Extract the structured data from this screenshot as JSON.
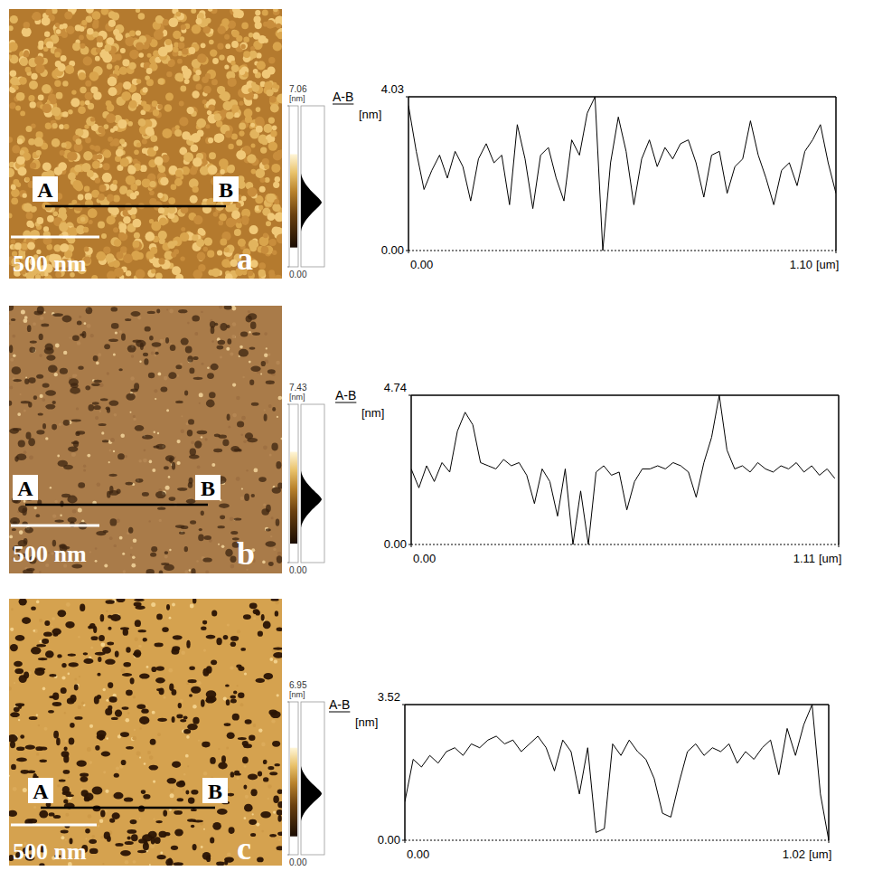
{
  "chart_data": [
    {
      "type": "line",
      "title": "A-B",
      "y_label": "[nm]",
      "x_label": "[um]",
      "color": "#000000",
      "xlim": [
        0,
        1.1
      ],
      "ylim": [
        0,
        4.03
      ],
      "xticks": [
        {
          "value": 0,
          "label": "0.00"
        },
        {
          "value": 1.1,
          "label": "1.10"
        }
      ],
      "yticks": [
        {
          "value": 0,
          "label": "0.00"
        },
        4.03
      ],
      "x": [
        0,
        0.02,
        0.04,
        0.06,
        0.08,
        0.1,
        0.12,
        0.14,
        0.16,
        0.18,
        0.2,
        0.22,
        0.24,
        0.26,
        0.28,
        0.3,
        0.32,
        0.34,
        0.36,
        0.38,
        0.4,
        0.42,
        0.44,
        0.46,
        0.48,
        0.5,
        0.52,
        0.54,
        0.56,
        0.58,
        0.6,
        0.62,
        0.64,
        0.66,
        0.68,
        0.7,
        0.72,
        0.74,
        0.76,
        0.78,
        0.8,
        0.82,
        0.84,
        0.86,
        0.88,
        0.9,
        0.92,
        0.94,
        0.96,
        0.98,
        1.0,
        1.02,
        1.04,
        1.06,
        1.08,
        1.1
      ],
      "values": [
        3.8,
        2.6,
        1.6,
        2.1,
        2.5,
        1.9,
        2.6,
        2.2,
        1.3,
        2.4,
        2.8,
        2.3,
        2.5,
        1.2,
        3.3,
        2.4,
        1.1,
        2.5,
        2.7,
        1.9,
        1.3,
        2.9,
        2.5,
        3.6,
        4.03,
        0.0,
        2.3,
        3.5,
        2.6,
        1.2,
        2.4,
        2.9,
        2.2,
        2.7,
        2.4,
        2.8,
        2.9,
        2.3,
        1.4,
        2.5,
        2.6,
        1.5,
        2.2,
        2.4,
        3.4,
        2.5,
        1.9,
        1.2,
        2.1,
        2.3,
        1.7,
        2.6,
        2.9,
        3.3,
        2.3,
        1.5
      ],
      "image": {
        "label": "a",
        "scale_bar": "500 nm",
        "line_labels": [
          "A",
          "B"
        ],
        "colorbar_unit": "[nm]",
        "colorbar_range": [
          0,
          7.06
        ],
        "colorbar_ticks": [
          {
            "value": 0,
            "label": "0.00"
          },
          7.06
        ]
      }
    },
    {
      "type": "line",
      "title": "A-B",
      "y_label": "[nm]",
      "x_label": "[um]",
      "color": "#000000",
      "xlim": [
        0,
        1.11
      ],
      "ylim": [
        0,
        4.74
      ],
      "xticks": [
        {
          "value": 0,
          "label": "0.00"
        },
        1.11
      ],
      "yticks": [
        {
          "value": 0,
          "label": "0.00"
        },
        4.74
      ],
      "x": [
        0,
        0.02,
        0.04,
        0.06,
        0.08,
        0.1,
        0.12,
        0.14,
        0.16,
        0.18,
        0.2,
        0.22,
        0.24,
        0.26,
        0.28,
        0.3,
        0.32,
        0.34,
        0.36,
        0.38,
        0.4,
        0.42,
        0.44,
        0.46,
        0.48,
        0.5,
        0.52,
        0.54,
        0.56,
        0.58,
        0.6,
        0.62,
        0.64,
        0.66,
        0.68,
        0.7,
        0.72,
        0.74,
        0.76,
        0.78,
        0.8,
        0.82,
        0.84,
        0.86,
        0.88,
        0.9,
        0.92,
        0.94,
        0.96,
        0.98,
        1.0,
        1.02,
        1.04,
        1.06,
        1.08,
        1.1
      ],
      "values": [
        2.4,
        1.8,
        2.5,
        2.0,
        2.6,
        2.3,
        3.6,
        4.2,
        3.8,
        2.6,
        2.5,
        2.4,
        2.7,
        2.5,
        2.6,
        2.2,
        1.3,
        2.4,
        2.0,
        0.9,
        2.4,
        0.0,
        1.7,
        0.0,
        2.3,
        2.5,
        2.2,
        2.3,
        1.1,
        2.0,
        2.4,
        2.4,
        2.5,
        2.4,
        2.6,
        2.5,
        2.3,
        1.5,
        2.6,
        3.4,
        4.74,
        3.0,
        2.4,
        2.5,
        2.3,
        2.6,
        2.4,
        2.3,
        2.5,
        2.4,
        2.6,
        2.3,
        2.5,
        2.2,
        2.4,
        2.1
      ],
      "image": {
        "label": "b",
        "scale_bar": "500 nm",
        "line_labels": [
          "A",
          "B"
        ],
        "colorbar_unit": "[nm]",
        "colorbar_range": [
          0,
          7.43
        ],
        "colorbar_ticks": [
          {
            "value": 0,
            "label": "0.00"
          },
          7.43
        ]
      }
    },
    {
      "type": "line",
      "title": "A-B",
      "y_label": "[nm]",
      "x_label": "[um]",
      "color": "#000000",
      "xlim": [
        0,
        1.02
      ],
      "ylim": [
        0,
        3.52
      ],
      "xticks": [
        {
          "value": 0,
          "label": "0.00"
        },
        1.02
      ],
      "yticks": [
        {
          "value": 0,
          "label": "0.00"
        },
        3.52
      ],
      "x": [
        0,
        0.02,
        0.04,
        0.06,
        0.08,
        0.1,
        0.12,
        0.14,
        0.16,
        0.18,
        0.2,
        0.22,
        0.24,
        0.26,
        0.28,
        0.3,
        0.32,
        0.34,
        0.36,
        0.38,
        0.4,
        0.42,
        0.44,
        0.46,
        0.48,
        0.5,
        0.52,
        0.54,
        0.56,
        0.58,
        0.6,
        0.62,
        0.64,
        0.66,
        0.68,
        0.7,
        0.72,
        0.74,
        0.76,
        0.78,
        0.8,
        0.82,
        0.84,
        0.86,
        0.88,
        0.9,
        0.92,
        0.94,
        0.96,
        0.98,
        1.0,
        1.02
      ],
      "values": [
        1.0,
        2.1,
        1.9,
        2.2,
        2.0,
        2.3,
        2.4,
        2.2,
        2.5,
        2.4,
        2.6,
        2.7,
        2.5,
        2.6,
        2.3,
        2.5,
        2.7,
        2.4,
        1.8,
        2.6,
        2.3,
        1.2,
        2.4,
        0.2,
        0.3,
        2.5,
        2.2,
        2.6,
        2.3,
        2.1,
        1.6,
        0.7,
        0.6,
        1.5,
        2.3,
        2.5,
        2.2,
        2.4,
        2.3,
        2.5,
        2.0,
        2.3,
        2.1,
        2.4,
        2.6,
        1.7,
        2.9,
        2.2,
        3.0,
        3.52,
        1.2,
        0.0
      ],
      "image": {
        "label": "c",
        "scale_bar": "500 nm",
        "line_labels": [
          "A",
          "B"
        ],
        "colorbar_unit": "[nm]",
        "colorbar_range": [
          0,
          6.95
        ],
        "colorbar_ticks": [
          {
            "value": 0,
            "label": "0.00"
          },
          6.95
        ]
      }
    }
  ]
}
